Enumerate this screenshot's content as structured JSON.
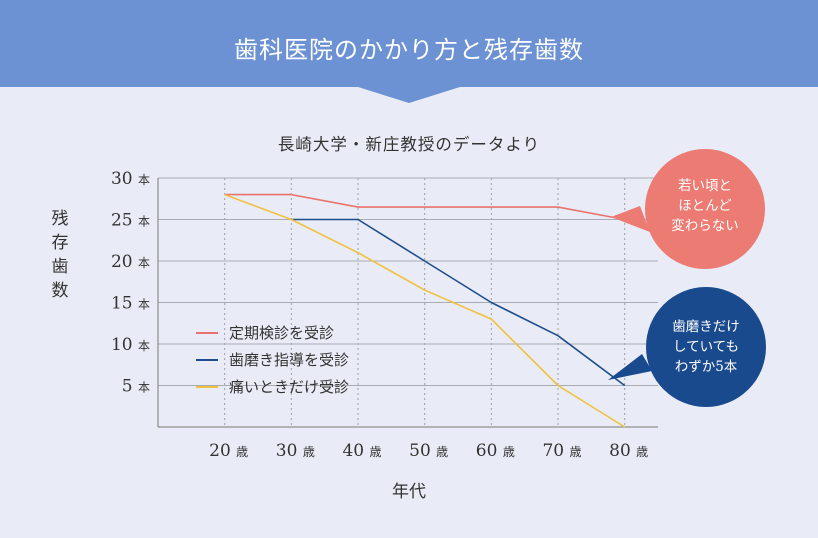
{
  "title": "歯科医院のかかり方と残存歯数",
  "chart_data": {
    "type": "line",
    "source": "長崎大学・新庄教授のデータより",
    "xlabel": "年代",
    "ylabel": "残存歯数",
    "x": [
      20,
      30,
      40,
      50,
      60,
      70,
      80
    ],
    "x_unit": "歳",
    "y_unit": "本",
    "yticks": [
      5,
      10,
      15,
      20,
      25,
      30
    ],
    "ylim": [
      0,
      30
    ],
    "xlim": [
      10,
      85
    ],
    "grid": true,
    "legend_position": "bottom-left",
    "series": [
      {
        "name": "定期検診を受診",
        "color": "#e8736c",
        "x": [
          20,
          30,
          40,
          50,
          60,
          70,
          80
        ],
        "values": [
          28,
          28,
          26.5,
          26.5,
          26.5,
          26.5,
          25
        ]
      },
      {
        "name": "歯磨き指導を受診",
        "color": "#1f4f8a",
        "x": [
          30,
          40,
          50,
          60,
          70,
          80
        ],
        "values": [
          25,
          25,
          20,
          15,
          11,
          5
        ]
      },
      {
        "name": "痛いときだけ受診",
        "color": "#f0c13c",
        "x": [
          20,
          30,
          40,
          50,
          60,
          70,
          80
        ],
        "values": [
          28,
          25,
          21,
          16.5,
          13,
          5,
          0
        ]
      }
    ],
    "annotations": [
      {
        "lines": [
          "若い頃と",
          "ほとんど",
          "変わらない"
        ],
        "color": "#ec7b73",
        "series": "定期検診を受診"
      },
      {
        "lines": [
          "歯磨きだけ",
          "していても",
          "わずか5本"
        ],
        "color": "#1a4a8e",
        "series": "歯磨き指導を受診"
      }
    ]
  }
}
